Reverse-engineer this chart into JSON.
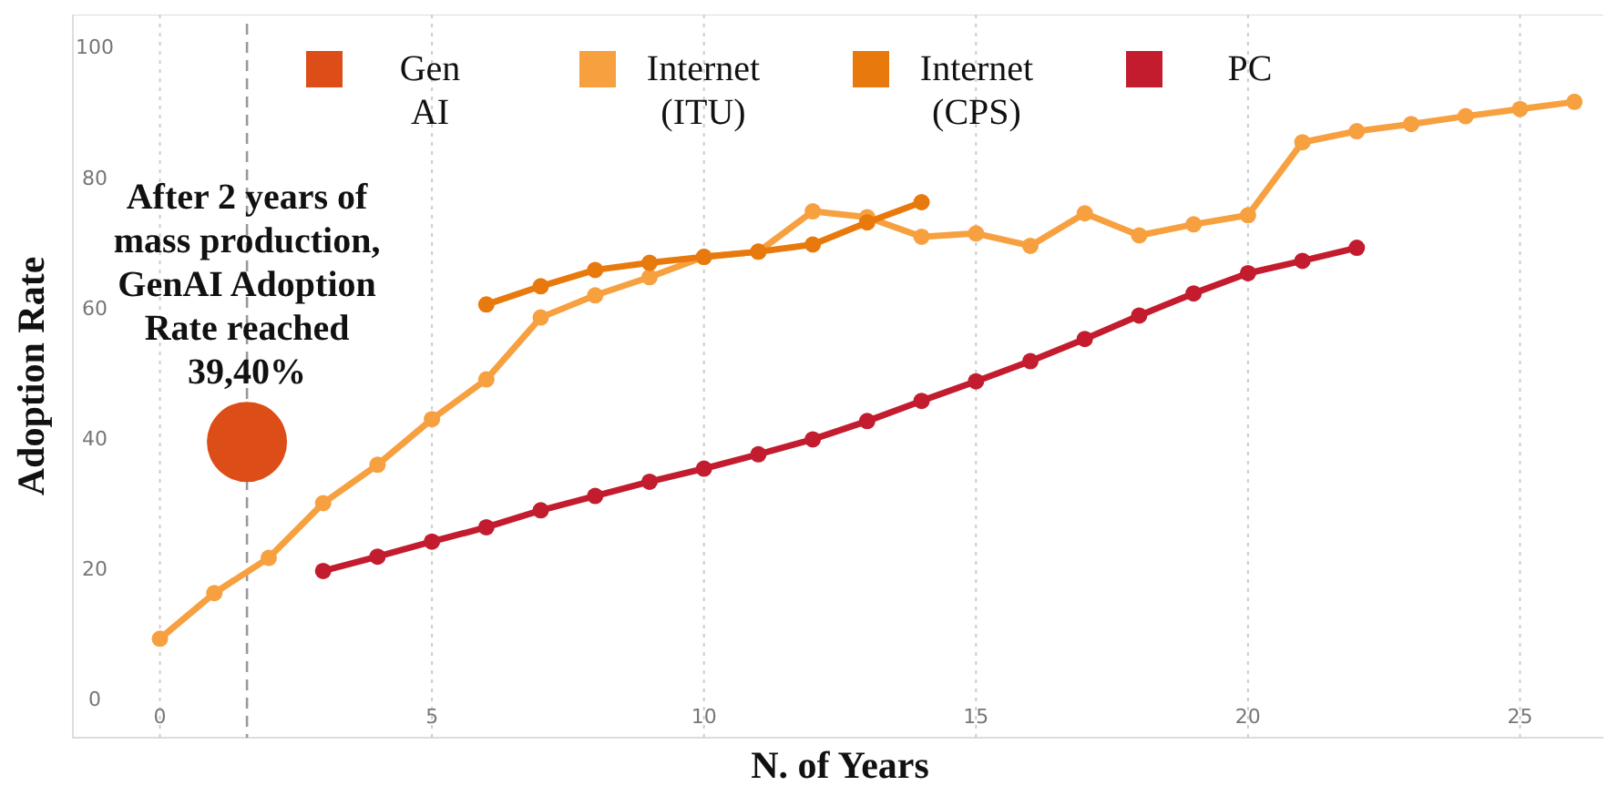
{
  "chart_data": {
    "type": "line",
    "xlabel": "N. of Years",
    "ylabel": "Adoption Rate",
    "xlim": [
      -1.6,
      26.6
    ],
    "ylim": [
      -6,
      105
    ],
    "xticks": [
      0,
      5,
      10,
      15,
      20,
      25
    ],
    "yticks": [
      0,
      20,
      40,
      60,
      80,
      100
    ],
    "grid": "x",
    "legend": "top",
    "marker": "circle",
    "line_style": "solid",
    "series": [
      {
        "name": "Gen AI",
        "type": "scatter",
        "color": "#dc4d17",
        "x": [
          1.6
        ],
        "values": [
          39.4
        ]
      },
      {
        "name": "Internet (ITU)",
        "color": "#f7a040",
        "x": [
          0,
          1,
          2,
          3,
          4,
          5,
          6,
          7,
          8,
          9,
          10,
          11,
          12,
          13,
          14,
          15,
          16,
          17,
          18,
          19,
          20,
          21,
          22,
          23,
          24,
          25,
          26
        ],
        "values": [
          9.2,
          16.2,
          21.6,
          30,
          35.9,
          42.9,
          49,
          58.5,
          61.9,
          64.7,
          67.8,
          68.6,
          74.8,
          73.9,
          70.9,
          71.4,
          69.5,
          74.5,
          71.1,
          72.8,
          74.2,
          85.4,
          87.1,
          88.2,
          89.4,
          90.5,
          91.6
        ]
      },
      {
        "name": "Internet (CPS)",
        "color": "#e8790c",
        "x": [
          6,
          7,
          8,
          9,
          10,
          11,
          12,
          13,
          14
        ],
        "values": [
          60.5,
          63.3,
          65.8,
          66.9,
          67.8,
          68.6,
          69.7,
          73.1,
          76.2
        ]
      },
      {
        "name": "PC",
        "color": "#c21c2e",
        "x": [
          3,
          4,
          5,
          6,
          7,
          8,
          9,
          10,
          11,
          12,
          13,
          14,
          15,
          16,
          17,
          18,
          19,
          20,
          21,
          22
        ],
        "values": [
          19.6,
          21.8,
          24.1,
          26.3,
          28.9,
          31.1,
          33.3,
          35.3,
          37.5,
          39.8,
          42.6,
          45.7,
          48.7,
          51.8,
          55.2,
          58.8,
          62.2,
          65.3,
          67.2,
          69.2
        ]
      }
    ],
    "ref_lines": [
      {
        "axis": "x",
        "value": 1.6,
        "color": "#999999",
        "line_style": "dashed"
      }
    ],
    "annotations": [
      {
        "text": "After 2 years of\nmass production,\nGenAI Adoption\nRate reached\n39,40%",
        "x": 1.6,
        "y": 39.4
      }
    ]
  }
}
